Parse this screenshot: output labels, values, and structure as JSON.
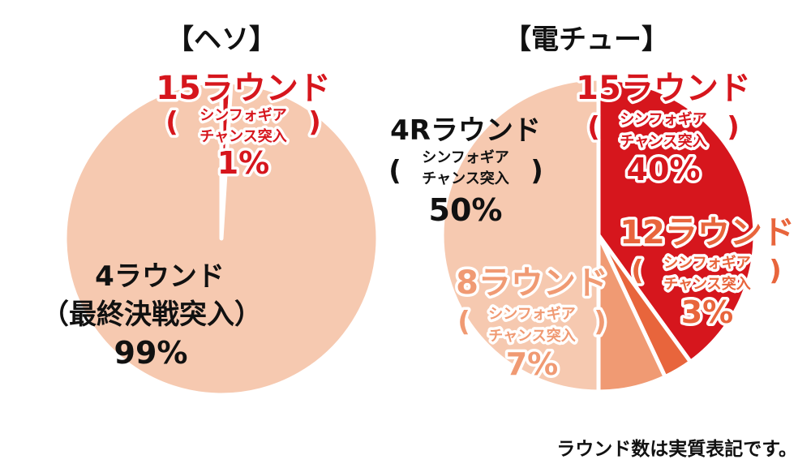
{
  "footnote": "ラウンド数は実質表記です。",
  "colors": {
    "peach": "#f6c9b0",
    "red": "#d6161d",
    "orange": "#e8653c",
    "salmon": "#f09a73",
    "dark": "#111111"
  },
  "chart_data": [
    {
      "type": "pie",
      "title": "【ヘソ】",
      "slices": [
        {
          "name": "15ラウンド",
          "sub1": "シンフォギア",
          "sub2": "チャンス突入",
          "value": 1,
          "label": "1%",
          "color": "#d6161d"
        },
        {
          "name": "4ラウンド",
          "sub1": "（最終決戦突入）",
          "value": 99,
          "label": "99%",
          "color": "#f6c9b0"
        }
      ]
    },
    {
      "type": "pie",
      "title": "【電チュー】",
      "slices": [
        {
          "name": "15ラウンド",
          "sub1": "シンフォギア",
          "sub2": "チャンス突入",
          "value": 40,
          "label": "40%",
          "color": "#d6161d"
        },
        {
          "name": "12ラウンド",
          "sub1": "シンフォギア",
          "sub2": "チャンス突入",
          "value": 3,
          "label": "3%",
          "color": "#e8653c"
        },
        {
          "name": "8ラウンド",
          "sub1": "シンフォギア",
          "sub2": "チャンス突入",
          "value": 7,
          "label": "7%",
          "color": "#f09a73"
        },
        {
          "name": "4Rラウンド",
          "sub1": "シンフォギア",
          "sub2": "チャンス突入",
          "value": 50,
          "label": "50%",
          "color": "#f6c9b0"
        }
      ]
    }
  ]
}
